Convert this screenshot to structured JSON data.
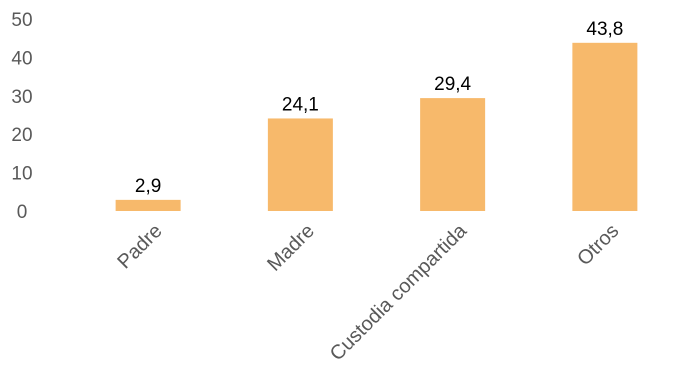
{
  "chart_data": {
    "type": "bar",
    "categories": [
      "Padre",
      "Madre",
      "Custodia compartida",
      "Otros"
    ],
    "values": [
      2.9,
      24.1,
      29.4,
      43.8
    ],
    "data_labels": [
      "2,9",
      "24,1",
      "29,4",
      "43,8"
    ],
    "title": "",
    "xlabel": "",
    "ylabel": "",
    "ylim": [
      0,
      50
    ],
    "yticks": [
      "0",
      "10",
      "20",
      "30",
      "40",
      "50"
    ],
    "grid": false,
    "legend": "none",
    "bar_color": "#F7B96B"
  }
}
